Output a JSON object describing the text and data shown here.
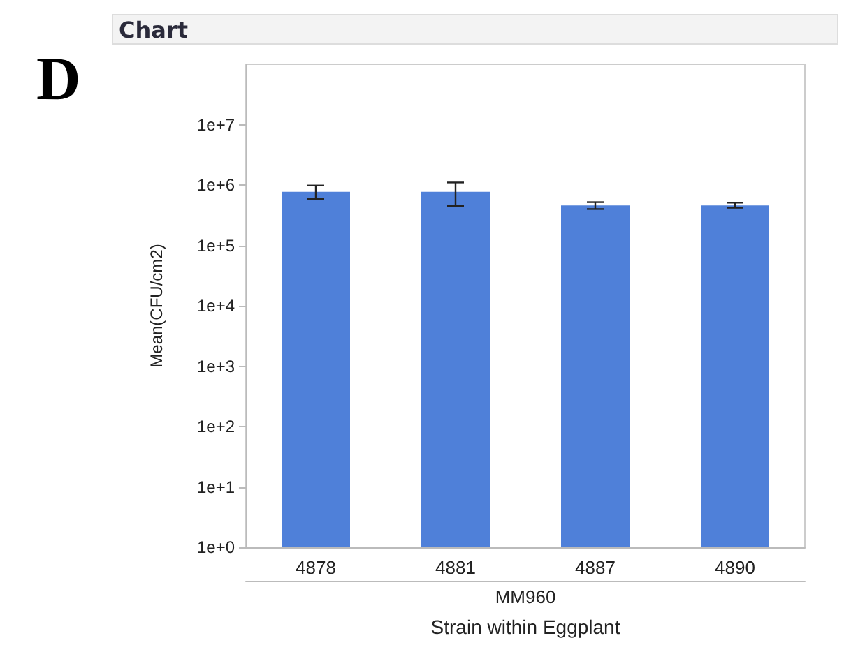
{
  "chart_data": {
    "type": "bar",
    "title": "Chart",
    "annotations": [
      "D",
      "MM960"
    ],
    "xlabel": "Strain within Eggplant",
    "ylabel": "Mean(CFU/cm2)",
    "categories": [
      "4878",
      "4881",
      "4887",
      "4890"
    ],
    "values": [
      770000,
      770000,
      460000,
      460000
    ],
    "errors": [
      [
        590000,
        980000
      ],
      [
        450000,
        1100000
      ],
      [
        400000,
        520000
      ],
      [
        420000,
        510000
      ]
    ],
    "color": "#4f80d9",
    "log": "y",
    "ylim": [
      1,
      100000000
    ],
    "yticks": [
      {
        "value": 1,
        "label": "1e+0"
      },
      {
        "value": 10,
        "label": "1e+1"
      },
      {
        "value": 100,
        "label": "1e+2"
      },
      {
        "value": 1000,
        "label": "1e+3"
      },
      {
        "value": 10000,
        "label": "1e+4"
      },
      {
        "value": 100000,
        "label": "1e+5"
      },
      {
        "value": 1000000,
        "label": "1e+6"
      },
      {
        "value": 10000000,
        "label": "1e+7"
      }
    ],
    "grid": false
  }
}
